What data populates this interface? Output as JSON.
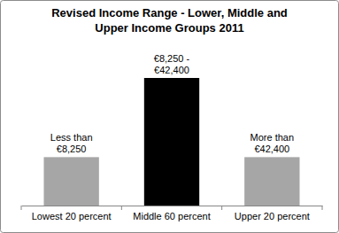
{
  "chart_data": {
    "type": "bar",
    "title": "Revised Income Range - Lower, Middle and Upper Income Groups 2011",
    "categories": [
      "Lowest 20 percent",
      "Middle 60 percent",
      "Upper 20 percent"
    ],
    "values": [
      55,
      145,
      55
    ],
    "annotations": [
      "Less than €8,250",
      "€8,250 - €42,400",
      "More than €42,400"
    ],
    "colors": [
      "#a6a6a6",
      "#000000",
      "#a6a6a6"
    ],
    "ylim": [
      0,
      145
    ],
    "tick_labels": "x"
  }
}
